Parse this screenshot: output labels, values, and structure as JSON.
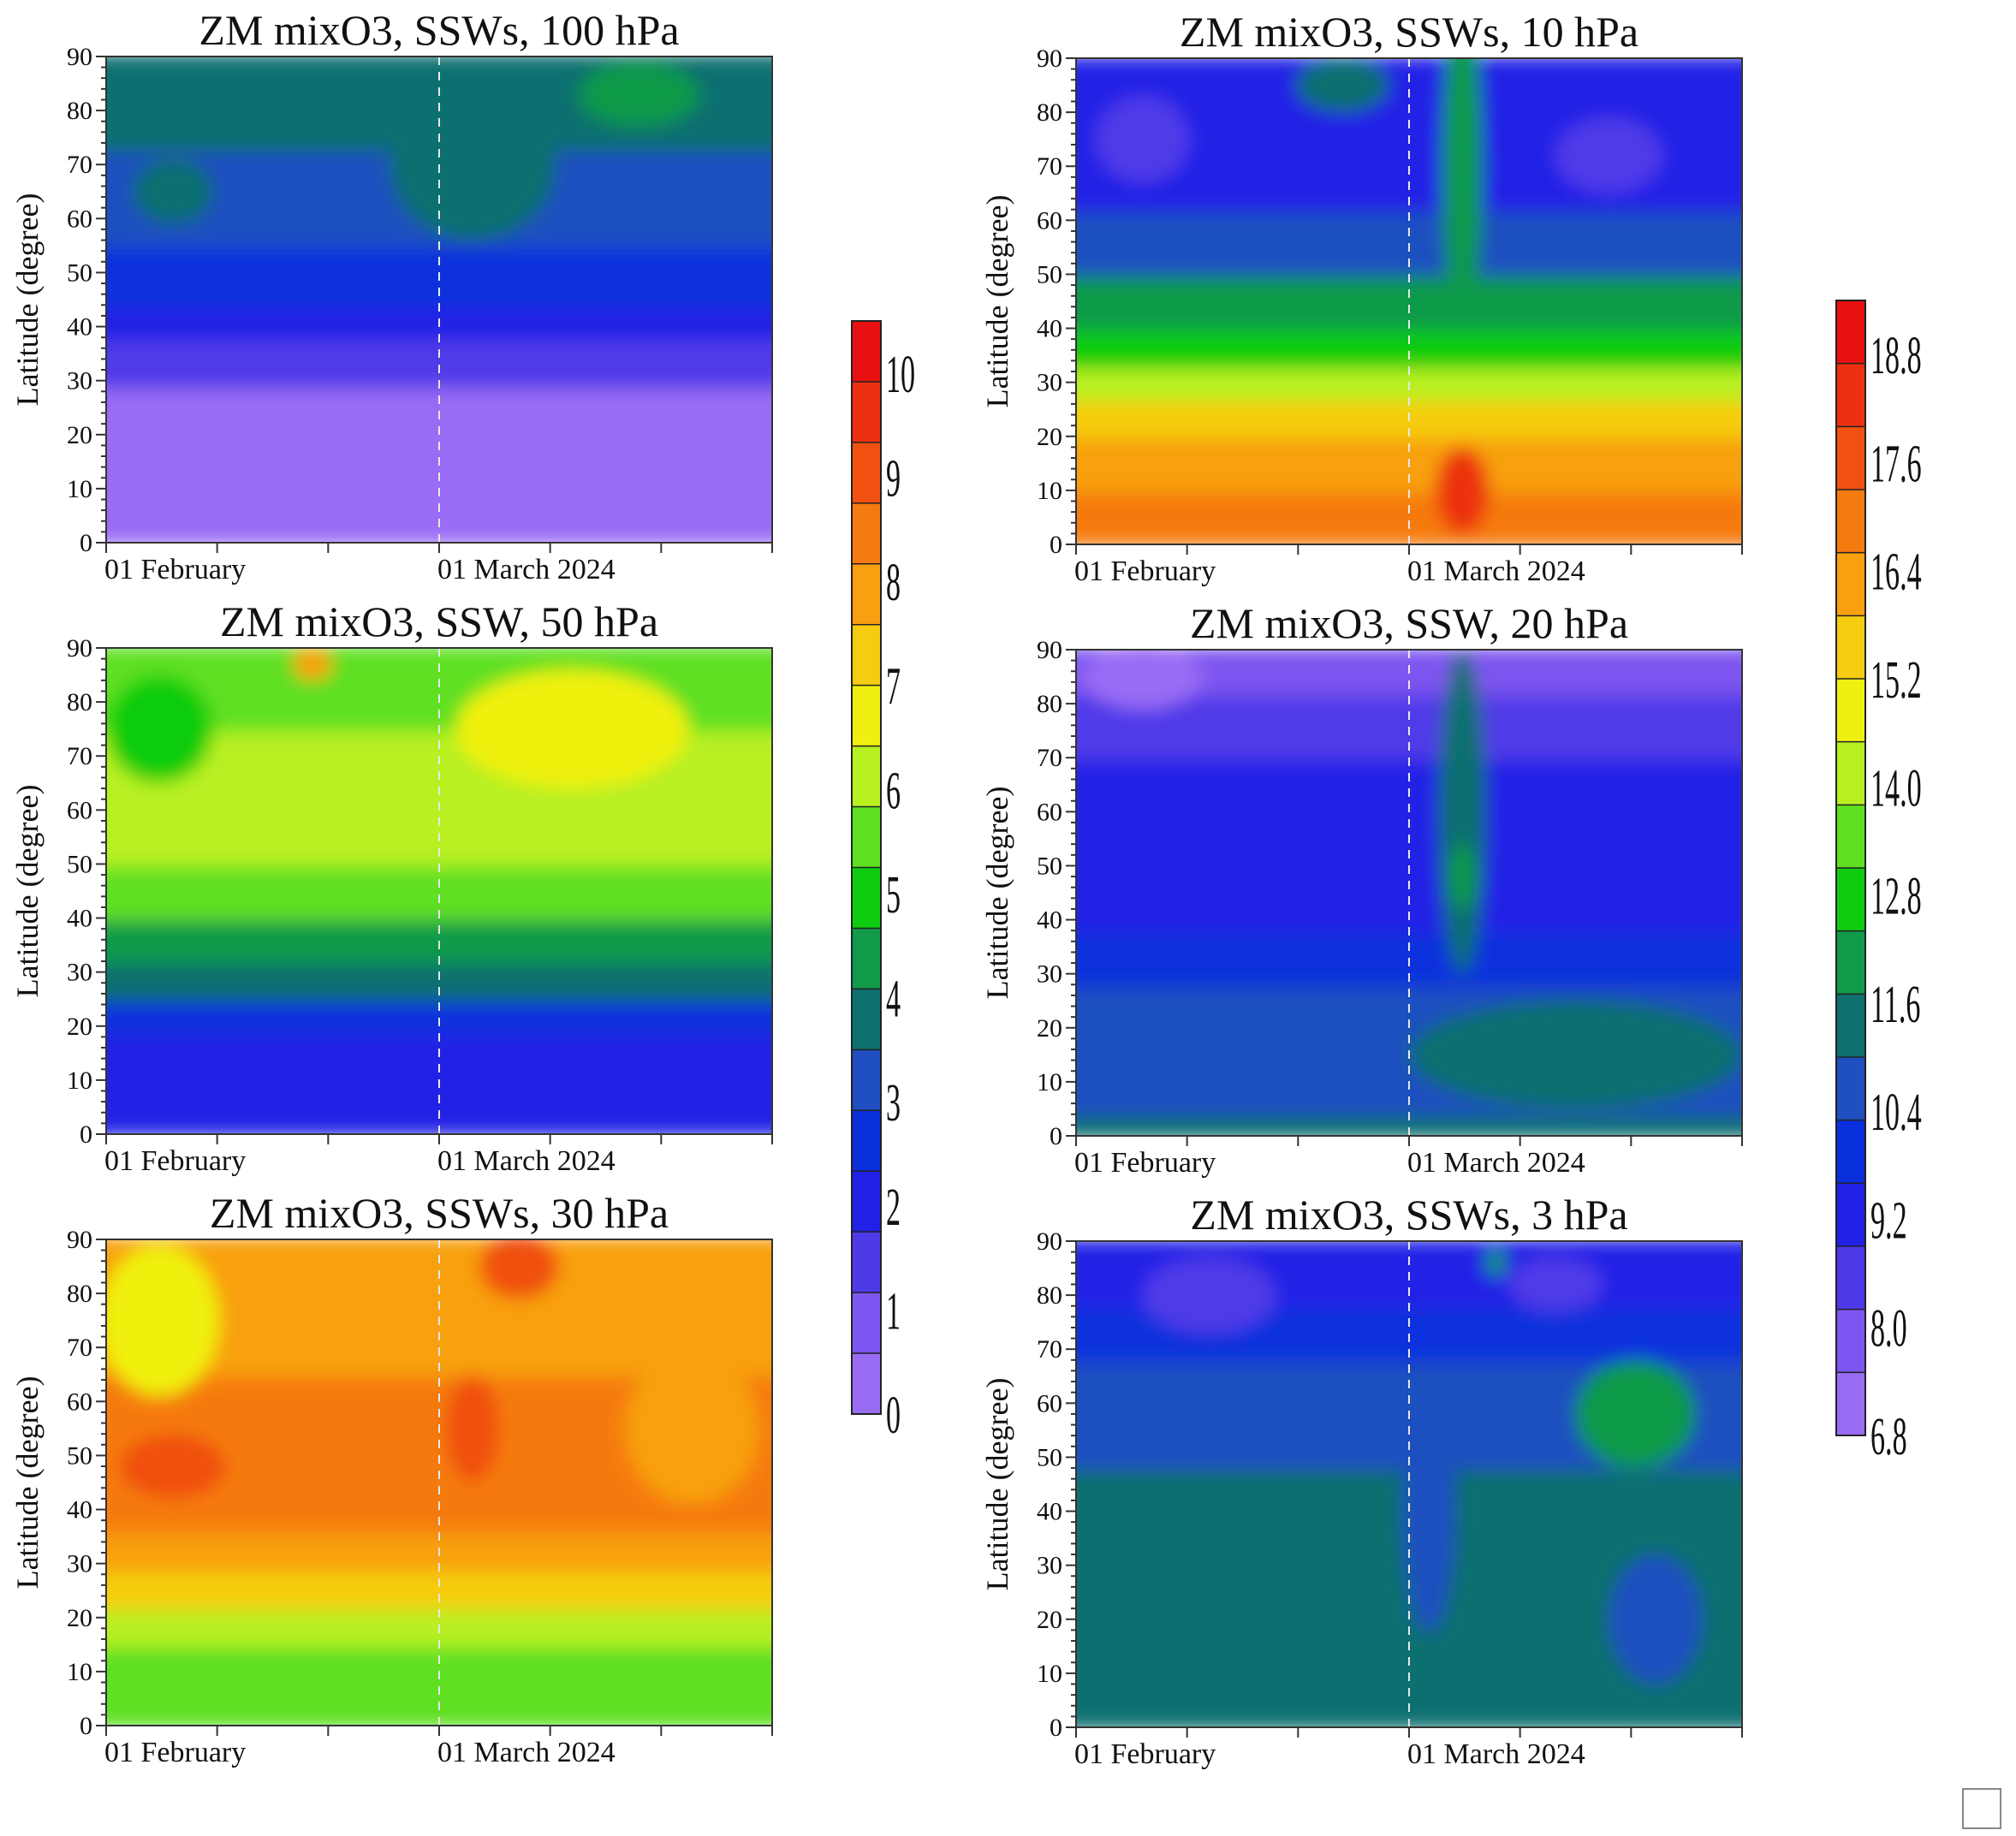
{
  "chart_data": {
    "type": "heatmap",
    "panels": [
      {
        "title": "ZM mixO3, SSWs, 100 hPa",
        "ylabel": "Latitude (degree)",
        "yticks": [
          "0",
          "10",
          "20",
          "30",
          "40",
          "50",
          "60",
          "70",
          "80",
          "90"
        ],
        "ylim": [
          0,
          90
        ],
        "xlabels": [
          "01 February",
          "01 March 2024"
        ],
        "scale": "left",
        "bands": [
          {
            "lat": [
              0,
              29
            ],
            "value": 0.5
          },
          {
            "lat": [
              29,
              38
            ],
            "value": 1.5
          },
          {
            "lat": [
              38,
              44
            ],
            "value": 2.0
          },
          {
            "lat": [
              44,
              55
            ],
            "value": 2.5
          },
          {
            "lat": [
              55,
              73
            ],
            "value": 3.0
          },
          {
            "lat": [
              73,
              90
            ],
            "value": 3.5
          }
        ],
        "blobs": [
          {
            "t": 0.55,
            "lat": 70,
            "w": 0.25,
            "h": 28,
            "value": 3.8
          },
          {
            "t": 0.8,
            "lat": 83,
            "w": 0.18,
            "h": 12,
            "value": 4.4
          },
          {
            "t": 0.1,
            "lat": 65,
            "w": 0.12,
            "h": 12,
            "value": 3.5
          }
        ]
      },
      {
        "title": "ZM mixO3, SSW, 20 hPa",
        "ylabel": "Latitude (degree)",
        "yticks": [
          "0",
          "10",
          "20",
          "30",
          "40",
          "50",
          "60",
          "70",
          "80",
          "90"
        ],
        "ylim": [
          0,
          90
        ],
        "xlabels": [
          "01 February",
          "01 March 2024"
        ],
        "scale": "right",
        "bands": [
          {
            "lat": [
              0,
              4
            ],
            "value": 11.6
          },
          {
            "lat": [
              4,
              28
            ],
            "value": 10.6
          },
          {
            "lat": [
              28,
              38
            ],
            "value": 9.8
          },
          {
            "lat": [
              38,
              70
            ],
            "value": 9.3
          },
          {
            "lat": [
              70,
              82
            ],
            "value": 8.7
          },
          {
            "lat": [
              82,
              90
            ],
            "value": 8.1
          }
        ],
        "blobs": [
          {
            "t": 0.58,
            "lat": 60,
            "w": 0.07,
            "h": 60,
            "value": 11.0
          },
          {
            "t": 0.58,
            "lat": 48,
            "w": 0.04,
            "h": 12,
            "value": 11.9
          },
          {
            "t": 0.75,
            "lat": 15,
            "w": 0.5,
            "h": 20,
            "value": 11.3
          },
          {
            "t": 0.1,
            "lat": 85,
            "w": 0.18,
            "h": 12,
            "value": 7.0
          }
        ]
      },
      {
        "title": "ZM mixO3, SSW, 50 hPa",
        "ylabel": "Latitude (degree)",
        "yticks": [
          "0",
          "10",
          "20",
          "30",
          "40",
          "50",
          "60",
          "70",
          "80",
          "90"
        ],
        "ylim": [
          0,
          90
        ],
        "xlabels": [
          "01 February",
          "01 March 2024"
        ],
        "scale": "left",
        "bands": [
          {
            "lat": [
              0,
              12
            ],
            "value": 1.8
          },
          {
            "lat": [
              12,
              19
            ],
            "value": 2.2
          },
          {
            "lat": [
              19,
              25
            ],
            "value": 2.8
          },
          {
            "lat": [
              25,
              32
            ],
            "value": 3.7
          },
          {
            "lat": [
              32,
              40
            ],
            "value": 4.5
          },
          {
            "lat": [
              40,
              50
            ],
            "value": 5.3
          },
          {
            "lat": [
              50,
              75
            ],
            "value": 6.1
          },
          {
            "lat": [
              75,
              90
            ],
            "value": 5.4
          }
        ],
        "blobs": [
          {
            "t": 0.7,
            "lat": 75,
            "w": 0.35,
            "h": 22,
            "value": 6.8
          },
          {
            "t": 0.31,
            "lat": 87,
            "w": 0.06,
            "h": 6,
            "value": 7.6
          },
          {
            "t": 0.08,
            "lat": 75,
            "w": 0.16,
            "h": 20,
            "value": 5.0
          }
        ]
      },
      {
        "title": "ZM mixO3, SSWs, 10 hPa",
        "ylabel": "Latitude (degree)",
        "yticks": [
          "0",
          "10",
          "20",
          "30",
          "40",
          "50",
          "60",
          "70",
          "80",
          "90"
        ],
        "ylim": [
          0,
          90
        ],
        "xlabels": [
          "01 February",
          "01 March 2024"
        ],
        "scale": "right",
        "bands": [
          {
            "lat": [
              0,
              10
            ],
            "value": 17.2
          },
          {
            "lat": [
              10,
              20
            ],
            "value": 16.5
          },
          {
            "lat": [
              20,
              27
            ],
            "value": 15.5
          },
          {
            "lat": [
              27,
              33
            ],
            "value": 14.4
          },
          {
            "lat": [
              33,
              40
            ],
            "value": 13.0
          },
          {
            "lat": [
              40,
              50
            ],
            "value": 11.8
          },
          {
            "lat": [
              50,
              62
            ],
            "value": 10.6
          },
          {
            "lat": [
              62,
              90
            ],
            "value": 9.5
          }
        ],
        "blobs": [
          {
            "t": 0.58,
            "lat": 70,
            "w": 0.06,
            "h": 60,
            "value": 12.2
          },
          {
            "t": 0.58,
            "lat": 10,
            "w": 0.08,
            "h": 16,
            "value": 18.2
          },
          {
            "t": 0.8,
            "lat": 72,
            "w": 0.16,
            "h": 14,
            "value": 8.6
          },
          {
            "t": 0.1,
            "lat": 75,
            "w": 0.14,
            "h": 16,
            "value": 8.4
          },
          {
            "t": 0.4,
            "lat": 85,
            "w": 0.14,
            "h": 10,
            "value": 11.2
          }
        ]
      },
      {
        "title": "ZM mixO3, SSWs, 30 hPa",
        "ylabel": "Latitude (degree)",
        "yticks": [
          "0",
          "10",
          "20",
          "30",
          "40",
          "50",
          "60",
          "70",
          "80",
          "90"
        ],
        "ylim": [
          0,
          90
        ],
        "xlabels": [
          "01 February",
          "01 March 2024"
        ],
        "scale": "left",
        "bands": [
          {
            "lat": [
              0,
              15
            ],
            "value": 5.8
          },
          {
            "lat": [
              15,
              22
            ],
            "value": 6.4
          },
          {
            "lat": [
              22,
              29
            ],
            "value": 7.1
          },
          {
            "lat": [
              29,
              36
            ],
            "value": 7.7
          },
          {
            "lat": [
              36,
              65
            ],
            "value": 8.3
          },
          {
            "lat": [
              65,
              90
            ],
            "value": 8.0
          }
        ],
        "blobs": [
          {
            "t": 0.08,
            "lat": 75,
            "w": 0.18,
            "h": 28,
            "value": 6.8
          },
          {
            "t": 0.1,
            "lat": 48,
            "w": 0.16,
            "h": 12,
            "value": 8.8
          },
          {
            "t": 0.55,
            "lat": 55,
            "w": 0.08,
            "h": 20,
            "value": 8.8
          },
          {
            "t": 0.62,
            "lat": 85,
            "w": 0.12,
            "h": 12,
            "value": 9.2
          },
          {
            "t": 0.88,
            "lat": 55,
            "w": 0.2,
            "h": 28,
            "value": 7.8
          }
        ]
      },
      {
        "title": "ZM mixO3, SSWs, 3 hPa",
        "ylabel": "Latitude (degree)",
        "yticks": [
          "0",
          "10",
          "20",
          "30",
          "40",
          "50",
          "60",
          "70",
          "80",
          "90"
        ],
        "ylim": [
          0,
          90
        ],
        "xlabels": [
          "01 February",
          "01 March 2024"
        ],
        "scale": "right",
        "bands": [
          {
            "lat": [
              0,
              48
            ],
            "value": 11.2
          },
          {
            "lat": [
              48,
              68
            ],
            "value": 10.6
          },
          {
            "lat": [
              68,
              78
            ],
            "value": 9.8
          },
          {
            "lat": [
              78,
              90
            ],
            "value": 9.3
          }
        ],
        "blobs": [
          {
            "t": 0.53,
            "lat": 40,
            "w": 0.08,
            "h": 45,
            "value": 10.6
          },
          {
            "t": 0.87,
            "lat": 20,
            "w": 0.14,
            "h": 24,
            "value": 10.6
          },
          {
            "t": 0.84,
            "lat": 58,
            "w": 0.18,
            "h": 20,
            "value": 12.0
          },
          {
            "t": 0.2,
            "lat": 80,
            "w": 0.2,
            "h": 14,
            "value": 8.8
          },
          {
            "t": 0.72,
            "lat": 82,
            "w": 0.14,
            "h": 10,
            "value": 8.7
          },
          {
            "t": 0.63,
            "lat": 86,
            "w": 0.03,
            "h": 5,
            "value": 11.8
          }
        ]
      }
    ],
    "colorbars": [
      {
        "id": "left",
        "min": 0,
        "max": 10.5,
        "labels": [
          "0",
          "1",
          "2",
          "3",
          "4",
          "5",
          "6",
          "7",
          "8",
          "9",
          "10"
        ],
        "label_values": [
          0,
          1,
          2,
          3,
          4,
          5,
          6,
          7,
          8,
          9,
          10
        ]
      },
      {
        "id": "right",
        "min": 6.8,
        "max": 19.4,
        "labels": [
          "6.8",
          "8.0",
          "9.2",
          "10.4",
          "11.6",
          "12.8",
          "14.0",
          "15.2",
          "16.4",
          "17.6",
          "18.8"
        ],
        "label_values": [
          6.8,
          8.0,
          9.2,
          10.4,
          11.6,
          12.8,
          14.0,
          15.2,
          16.4,
          17.6,
          18.8
        ]
      }
    ],
    "colormap": [
      "#9a6cf5",
      "#7d55f0",
      "#4f3ae8",
      "#2020e6",
      "#0a30dd",
      "#1f4fc0",
      "#0f7070",
      "#109a4a",
      "#10cc10",
      "#5fe020",
      "#b8f020",
      "#f0f010",
      "#f6cc10",
      "#f8a010",
      "#f57a10",
      "#f05010",
      "#ec3010",
      "#e81010"
    ]
  }
}
